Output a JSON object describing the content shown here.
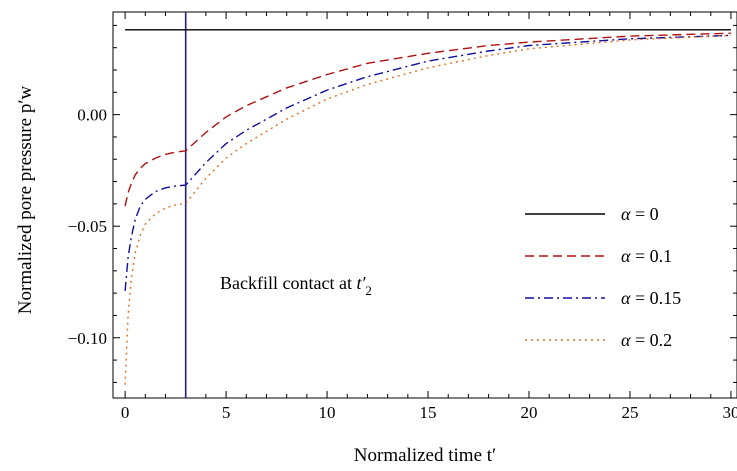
{
  "chart_data": {
    "type": "line",
    "title": "",
    "xlabel": "Normalized time t′",
    "ylabel": "Normalized pore pressure p′w",
    "xlim": [
      -0.6,
      30.3
    ],
    "ylim": [
      -0.127,
      0.046
    ],
    "xticks": [
      0,
      5,
      10,
      15,
      20,
      25,
      30
    ],
    "xtick_labels": [
      "0",
      "5",
      "10",
      "15",
      "20",
      "25",
      "30"
    ],
    "yticks": [
      0.0,
      -0.05,
      -0.1
    ],
    "ytick_labels": [
      "0.00",
      "−0.05",
      "−0.10"
    ],
    "grid": false,
    "legend_position": "center-right",
    "vertical_line": {
      "x": 3,
      "color": "#1f1f8f"
    },
    "annotation": {
      "text": "Backfill contact at ",
      "math_base": "t′",
      "math_sub": "2",
      "x": 12.5,
      "y": -0.065
    },
    "series": [
      {
        "name": "α = 0",
        "color": "#000000",
        "dash": "",
        "x": [
          0,
          30
        ],
        "y": [
          0.038,
          0.038
        ]
      },
      {
        "name": "α = 0.1",
        "color": "#b01010",
        "dash": "9,5",
        "x": [
          0,
          0.15,
          0.3,
          0.5,
          0.75,
          1,
          1.5,
          2,
          2.5,
          3,
          4,
          5,
          6,
          8,
          10,
          12,
          15,
          18,
          20,
          25,
          30
        ],
        "y": [
          -0.041,
          -0.035,
          -0.031,
          -0.027,
          -0.024,
          -0.022,
          -0.0195,
          -0.0178,
          -0.0168,
          -0.0162,
          -0.008,
          -0.001,
          0.004,
          0.012,
          0.018,
          0.023,
          0.0275,
          0.031,
          0.0325,
          0.0352,
          0.0365
        ]
      },
      {
        "name": "α = 0.15",
        "color": "#1010a0",
        "dash": "9,4,2,4",
        "x": [
          0,
          0.15,
          0.3,
          0.5,
          0.75,
          1,
          1.5,
          2,
          2.5,
          3,
          4,
          5,
          6,
          8,
          10,
          12,
          15,
          18,
          20,
          25,
          30
        ],
        "y": [
          -0.079,
          -0.064,
          -0.055,
          -0.047,
          -0.041,
          -0.038,
          -0.0345,
          -0.0328,
          -0.032,
          -0.0316,
          -0.0215,
          -0.013,
          -0.007,
          0.003,
          0.011,
          0.017,
          0.024,
          0.0285,
          0.031,
          0.034,
          0.0355
        ]
      },
      {
        "name": "α = 0.2",
        "color": "#e07020",
        "dash": "2,4",
        "x": [
          0,
          0.15,
          0.3,
          0.5,
          0.75,
          1,
          1.5,
          2,
          2.5,
          3,
          4,
          5,
          6,
          8,
          10,
          12,
          15,
          18,
          20,
          25,
          30
        ],
        "y": [
          -0.121,
          -0.09,
          -0.074,
          -0.062,
          -0.054,
          -0.049,
          -0.0445,
          -0.0418,
          -0.0405,
          -0.0398,
          -0.0285,
          -0.0195,
          -0.013,
          -0.002,
          0.007,
          0.0135,
          0.021,
          0.0265,
          0.0295,
          0.0335,
          0.0355
        ]
      }
    ]
  }
}
